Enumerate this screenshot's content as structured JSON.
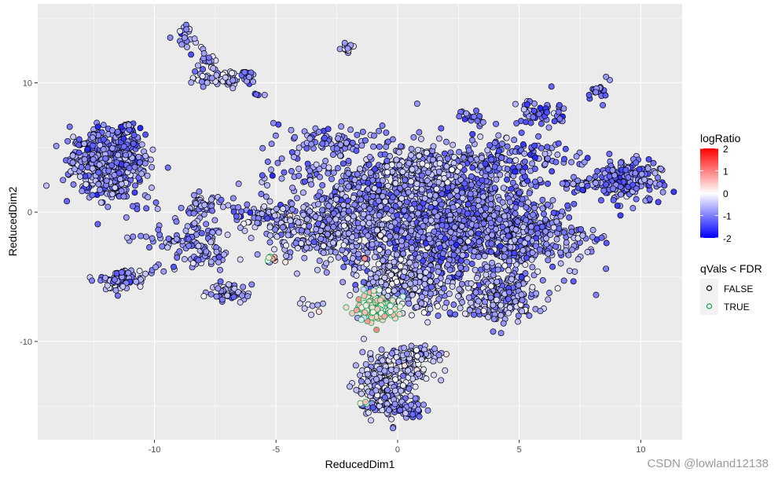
{
  "chart_data": {
    "type": "scatter",
    "title": "",
    "xlabel": "ReducedDim1",
    "ylabel": "ReducedDim2",
    "xlim": [
      -14.8,
      11.7
    ],
    "ylim": [
      -17.6,
      16.1
    ],
    "x_ticks": [
      -10,
      -5,
      0,
      5,
      10
    ],
    "y_ticks": [
      -10,
      0,
      10
    ],
    "grid": true,
    "background": "#EBEBEB",
    "color_legend": {
      "title": "logRatio",
      "ticks": [
        "2",
        "1",
        "0",
        "-1",
        "-2"
      ],
      "range": [
        -2,
        2
      ],
      "low": "#0000FF",
      "mid": "#FFFFFF",
      "high": "#FF0000"
    },
    "outline_legend": {
      "title": "qVals < FDR",
      "entries": [
        {
          "label": "FALSE",
          "color": "#000000"
        },
        {
          "label": "TRUE",
          "color": "#00A040"
        }
      ]
    },
    "legend_position": "right",
    "point_groups": [
      {
        "x": -11.9,
        "y": 3.9,
        "sx": 0.75,
        "sy": 1.2,
        "n": 600,
        "logRatio": -1.1,
        "q": false
      },
      {
        "x": -11.2,
        "y": 6.3,
        "sx": 0.3,
        "sy": 0.4,
        "n": 30,
        "logRatio": -1.2,
        "q": false
      },
      {
        "x": -11.3,
        "y": -5.2,
        "sx": 0.45,
        "sy": 0.4,
        "n": 80,
        "logRatio": -1.0,
        "q": false
      },
      {
        "x": -8.6,
        "y": 13.4,
        "sx": 0.2,
        "sy": 0.6,
        "n": 20,
        "logRatio": -0.9,
        "q": false
      },
      {
        "x": -7.9,
        "y": 11.5,
        "sx": 0.25,
        "sy": 0.5,
        "n": 20,
        "logRatio": -0.7,
        "q": false
      },
      {
        "x": -7.3,
        "y": 10.3,
        "sx": 0.5,
        "sy": 0.3,
        "n": 60,
        "logRatio": -0.6,
        "q": false
      },
      {
        "x": -6.2,
        "y": 10.6,
        "sx": 0.15,
        "sy": 0.2,
        "n": 15,
        "logRatio": -1.2,
        "q": false
      },
      {
        "x": -5.8,
        "y": 9.1,
        "sx": 0.2,
        "sy": 0.05,
        "n": 4,
        "logRatio": -1.2,
        "q": false
      },
      {
        "x": -2.0,
        "y": 12.6,
        "sx": 0.15,
        "sy": 0.2,
        "n": 15,
        "logRatio": -0.9,
        "q": false
      },
      {
        "x": 8.4,
        "y": 9.3,
        "sx": 0.2,
        "sy": 0.4,
        "n": 20,
        "logRatio": -1.3,
        "q": false
      },
      {
        "x": -8.0,
        "y": 0.4,
        "sx": 0.4,
        "sy": 0.4,
        "n": 50,
        "logRatio": -0.9,
        "q": false
      },
      {
        "x": -8.3,
        "y": -1.8,
        "sx": 0.5,
        "sy": 0.6,
        "n": 50,
        "logRatio": -1.0,
        "q": false
      },
      {
        "x": -7.9,
        "y": -3.5,
        "sx": 0.5,
        "sy": 0.6,
        "n": 40,
        "logRatio": -1.0,
        "q": false
      },
      {
        "x": -7.0,
        "y": -6.2,
        "sx": 0.5,
        "sy": 0.3,
        "n": 50,
        "logRatio": -1.0,
        "q": false
      },
      {
        "x": -10.8,
        "y": -2.0,
        "sx": 0.5,
        "sy": 0.2,
        "n": 6,
        "logRatio": -1.1,
        "q": false
      },
      {
        "x": -10.5,
        "y": 0.3,
        "sx": 0.4,
        "sy": 0.5,
        "n": 8,
        "logRatio": -1.1,
        "q": false
      },
      {
        "x": -9.4,
        "y": -2.0,
        "sx": 0.5,
        "sy": 0.3,
        "n": 15,
        "logRatio": -1.2,
        "q": false
      },
      {
        "x": -9.8,
        "y": -4.5,
        "sx": 0.4,
        "sy": 0.2,
        "n": 6,
        "logRatio": -0.9,
        "q": false
      },
      {
        "x": -5.5,
        "y": -0.2,
        "sx": 0.7,
        "sy": 0.4,
        "n": 40,
        "logRatio": -1.0,
        "q": false
      },
      {
        "x": -3.0,
        "y": 5.6,
        "sx": 1.0,
        "sy": 0.6,
        "n": 60,
        "logRatio": -1.0,
        "q": false
      },
      {
        "x": -3.5,
        "y": 3.2,
        "sx": 0.4,
        "sy": 0.3,
        "n": 10,
        "logRatio": -1.0,
        "q": false
      },
      {
        "x": -5.3,
        "y": 2.8,
        "sx": 0.3,
        "sy": 0.3,
        "n": 6,
        "logRatio": -1.0,
        "q": false
      },
      {
        "x": 0.0,
        "y": 0.5,
        "sx": 2.2,
        "sy": 2.2,
        "n": 900,
        "logRatio": -1.0,
        "q": false
      },
      {
        "x": 2.5,
        "y": -1.0,
        "sx": 2.0,
        "sy": 2.5,
        "n": 900,
        "logRatio": -1.1,
        "q": false
      },
      {
        "x": -3.0,
        "y": -1.5,
        "sx": 1.5,
        "sy": 1.0,
        "n": 300,
        "logRatio": -0.8,
        "q": false
      },
      {
        "x": 5.5,
        "y": -1.8,
        "sx": 1.2,
        "sy": 1.0,
        "n": 250,
        "logRatio": -1.0,
        "q": false
      },
      {
        "x": 4.2,
        "y": -6.5,
        "sx": 0.8,
        "sy": 1.0,
        "n": 250,
        "logRatio": -0.8,
        "q": false
      },
      {
        "x": -0.3,
        "y": -5.5,
        "sx": 0.6,
        "sy": 1.0,
        "n": 200,
        "logRatio": -0.5,
        "q": false
      },
      {
        "x": 1.0,
        "y": -5.8,
        "sx": 0.6,
        "sy": 0.7,
        "n": 100,
        "logRatio": -0.8,
        "q": false
      },
      {
        "x": 4.6,
        "y": 4.2,
        "sx": 1.3,
        "sy": 0.8,
        "n": 120,
        "logRatio": -1.2,
        "q": false
      },
      {
        "x": 5.8,
        "y": 7.7,
        "sx": 0.6,
        "sy": 0.5,
        "n": 50,
        "logRatio": -1.2,
        "q": false
      },
      {
        "x": 3.2,
        "y": 7.3,
        "sx": 0.4,
        "sy": 0.3,
        "n": 20,
        "logRatio": -1.3,
        "q": false
      },
      {
        "x": 0.8,
        "y": 3.2,
        "sx": 0.8,
        "sy": 0.8,
        "n": 150,
        "logRatio": -0.6,
        "q": false
      },
      {
        "x": 9.4,
        "y": 2.4,
        "sx": 0.7,
        "sy": 0.8,
        "n": 200,
        "logRatio": -1.2,
        "q": false
      },
      {
        "x": 7.5,
        "y": 2.2,
        "sx": 0.5,
        "sy": 0.3,
        "n": 30,
        "logRatio": -1.1,
        "q": false
      },
      {
        "x": -0.9,
        "y": -7.4,
        "sx": 0.45,
        "sy": 0.5,
        "n": 120,
        "logRatio": 0.4,
        "q": true
      },
      {
        "x": -3.6,
        "y": -7.3,
        "sx": 0.3,
        "sy": 0.3,
        "n": 8,
        "logRatio": -0.7,
        "q": false
      },
      {
        "x": -3.2,
        "y": -7.7,
        "sx": 0.05,
        "sy": 0.05,
        "n": 1,
        "logRatio": 0.6,
        "q": false
      },
      {
        "x": -0.2,
        "y": -12.3,
        "sx": 0.6,
        "sy": 0.7,
        "n": 250,
        "logRatio": -0.5,
        "q": false
      },
      {
        "x": 0.8,
        "y": -11.0,
        "sx": 0.5,
        "sy": 0.3,
        "n": 80,
        "logRatio": -0.6,
        "q": false
      },
      {
        "x": -0.5,
        "y": -14.2,
        "sx": 0.5,
        "sy": 0.8,
        "n": 150,
        "logRatio": -0.7,
        "q": false
      },
      {
        "x": 0.3,
        "y": -15.4,
        "sx": 0.4,
        "sy": 0.3,
        "n": 50,
        "logRatio": -1.1,
        "q": false
      },
      {
        "x": -1.3,
        "y": -14.8,
        "sx": 0.1,
        "sy": 0.1,
        "n": 3,
        "logRatio": 0.3,
        "q": true
      },
      {
        "x": -5.0,
        "y": -3.6,
        "sx": 0.2,
        "sy": 0.1,
        "n": 4,
        "logRatio": 0.6,
        "q": false
      },
      {
        "x": -5.2,
        "y": -3.5,
        "sx": 0.1,
        "sy": 0.1,
        "n": 3,
        "logRatio": 0.2,
        "q": true
      }
    ]
  },
  "watermark": "CSDN @lowland12138"
}
